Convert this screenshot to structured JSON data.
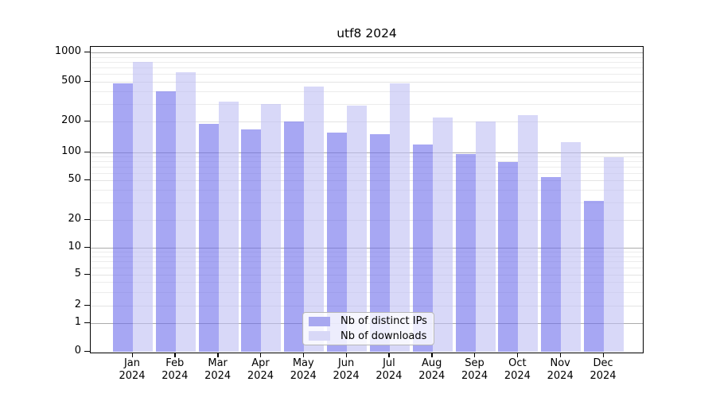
{
  "page": {
    "background": "#ffffff"
  },
  "chart_data": {
    "type": "bar",
    "title": "utf8 2024",
    "x_axis": {
      "categories": [
        "Jan",
        "Feb",
        "Mar",
        "Apr",
        "May",
        "Jun",
        "Jul",
        "Aug",
        "Sep",
        "Oct",
        "Nov",
        "Dec"
      ],
      "year_label": "2024"
    },
    "y_axis": {
      "scale": "symlog",
      "ticks": [
        0,
        1,
        2,
        5,
        10,
        20,
        50,
        100,
        200,
        500,
        1000
      ],
      "range": [
        0,
        1050
      ]
    },
    "series": [
      {
        "name": "Nb of distinct IPs",
        "color": "#a8a8f0",
        "fill": "rgba(108,108,235,0.6)",
        "values": [
          480,
          400,
          190,
          167,
          200,
          155,
          150,
          119,
          97,
          79,
          54,
          31
        ]
      },
      {
        "name": "Nb of downloads",
        "color": "#d8d8f7",
        "fill": "rgba(190,190,243,0.6)",
        "values": [
          800,
          630,
          315,
          298,
          450,
          290,
          480,
          220,
          200,
          230,
          126,
          89
        ]
      }
    ],
    "legend": {
      "position": "lower center"
    },
    "grid": {
      "major_color": "#ababab",
      "labeled_color": "#e3e3e3",
      "minor_color": "#ececec"
    }
  }
}
